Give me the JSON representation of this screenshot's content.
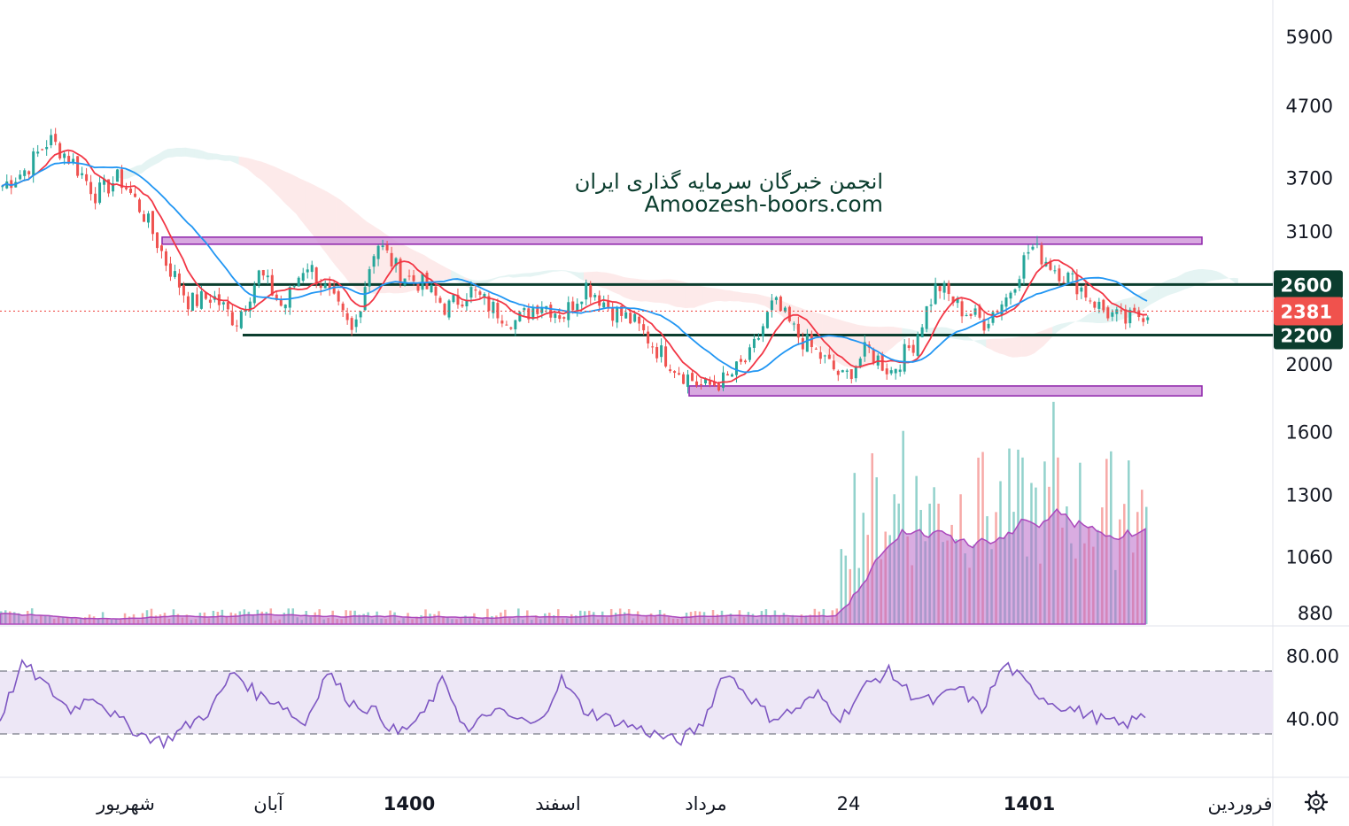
{
  "watermark": {
    "line1": "انجمن خبرگان سرمایه گذاری ایران",
    "line2": "Amoozesh-boors.com"
  },
  "colors": {
    "up": "#26a69a",
    "down": "#ef5350",
    "ma_fast": "#f23645",
    "ma_slow": "#2196f3",
    "level_line": "#0b3d2e",
    "zone_fill": "#ce93d8",
    "zone_stroke": "#8e24aa",
    "rsi_line": "#7e57c2",
    "rsi_band": "#ede7f6",
    "current_price_badge": "#f0524d",
    "level_badge": "#0b3d2e"
  },
  "chart_data": [
    {
      "type": "candlestick",
      "pane": "price",
      "price_scale_ticks": [
        "5900",
        "4700",
        "3700",
        "3100",
        "2000",
        "1600",
        "1300",
        "1060",
        "880"
      ],
      "current_price": "2381",
      "horizontal_levels": [
        {
          "label": "2600",
          "value": 2600
        },
        {
          "label": "2200",
          "value": 2200
        }
      ],
      "zones": [
        {
          "name": "resistance-zone",
          "from": 2970,
          "to": 3040
        },
        {
          "name": "support-zone",
          "from": 1800,
          "to": 1860
        }
      ],
      "overlays": [
        "moving-average-fast",
        "moving-average-slow",
        "ichimoku-cloud"
      ],
      "close_path_samples": [
        3600,
        3800,
        4200,
        3900,
        3500,
        3700,
        3300,
        2800,
        2450,
        2500,
        2300,
        2700,
        2400,
        2800,
        2500,
        2200,
        3000,
        2700,
        2600,
        2400,
        2550,
        2400,
        2300,
        2450,
        2350,
        2600,
        2400,
        2300,
        2100,
        1950,
        1850,
        1900,
        2050,
        2450,
        2200,
        2050,
        1900,
        2100,
        1950,
        2150,
        2600,
        2400,
        2300,
        2500,
        2950,
        2750,
        2600,
        2400,
        2300,
        2381
      ]
    },
    {
      "type": "bar",
      "pane": "volume",
      "note_series": [
        "volume",
        "volume-moving-average"
      ]
    },
    {
      "type": "line",
      "pane": "rsi",
      "scale_ticks": [
        "80.00",
        "40.00"
      ],
      "band": [
        30,
        70
      ],
      "values_samples": [
        40,
        75,
        60,
        45,
        55,
        40,
        30,
        25,
        35,
        45,
        70,
        55,
        50,
        35,
        70,
        50,
        45,
        30,
        40,
        65,
        30,
        45,
        40,
        35,
        65,
        45,
        40,
        35,
        30,
        25,
        35,
        70,
        55,
        40,
        45,
        55,
        40,
        60,
        70,
        55,
        50,
        60,
        45,
        75,
        60,
        50,
        45,
        40,
        35,
        42
      ]
    }
  ],
  "time_axis": {
    "labels": [
      "شهریور",
      "آبان",
      "1400",
      "اسفند",
      "مرداد",
      "24",
      "1401",
      "فروردین"
    ]
  },
  "toolbar": {
    "settings_icon": "gear-icon"
  }
}
